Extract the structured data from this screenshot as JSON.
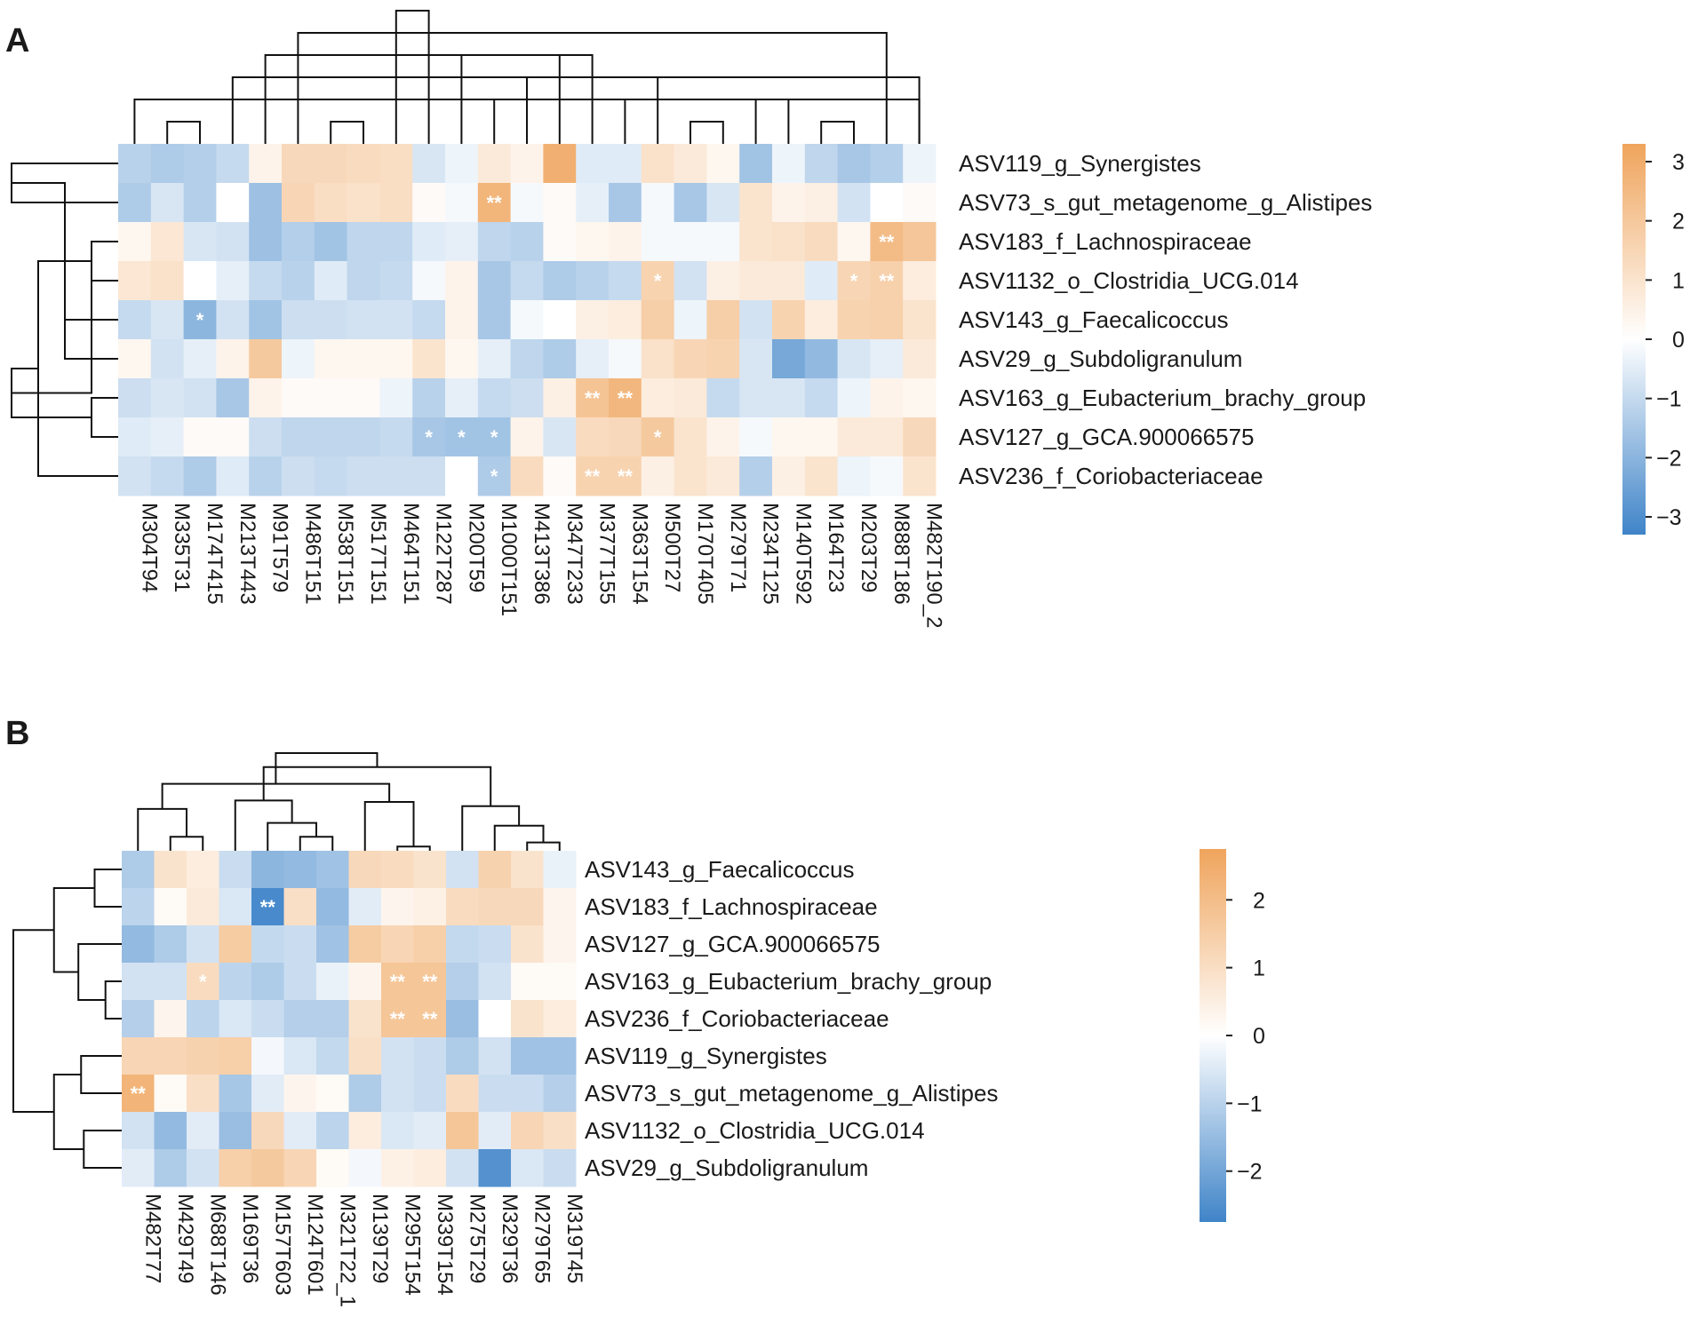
{
  "figure": {
    "colors": {
      "negative": "#3f84c8",
      "zero": "#ffffff",
      "positive": "#efa45c"
    }
  },
  "chart_data": [
    {
      "type": "heatmap",
      "panel": "A",
      "title": "",
      "xlabel": "",
      "ylabel": "",
      "color_range": [
        -3.3,
        3.3
      ],
      "colorbar_ticks": [
        "3",
        "2",
        "1",
        "0",
        "−1",
        "−2",
        "−3"
      ],
      "colorbar_tick_values": [
        3,
        2,
        1,
        0,
        -1,
        -2,
        -3
      ],
      "rows": [
        "ASV119_g_Synergistes",
        "ASV73_s_gut_metagenome_g_Alistipes",
        "ASV183_f_Lachnospiraceae",
        "ASV1132_o_Clostridia_UCG.014",
        "ASV143_g_Faecalicoccus",
        "ASV29_g_Subdoligranulum",
        "ASV163_g_Eubacterium_brachy_group",
        "ASV127_g_GCA.900066575",
        "ASV236_f_Coriobacteriaceae"
      ],
      "columns": [
        "M304T94",
        "M335T31",
        "M174T415",
        "M213T443",
        "M91T579",
        "M486T151",
        "M538T151",
        "M517T151",
        "M464T151",
        "M122T287",
        "M200T59",
        "M1000T151",
        "M413T386",
        "M347T233",
        "M377T155",
        "M363T154",
        "M500T27",
        "M170T405",
        "M279T71",
        "M234T125",
        "M140T592",
        "M164T23",
        "M203T29",
        "M888T186",
        "M482T190_2"
      ],
      "values": [
        [
          -1.0,
          -1.2,
          -1.1,
          -0.8,
          0.3,
          1.2,
          1.2,
          1.1,
          1.0,
          -0.5,
          -0.2,
          0.6,
          0.3,
          2.8,
          -0.4,
          -0.4,
          0.9,
          0.6,
          0.2,
          -1.4,
          -0.2,
          -0.9,
          -1.3,
          -1.1,
          -0.2
        ],
        [
          -1.2,
          -0.5,
          -1.1,
          0.0,
          -1.5,
          1.3,
          1.0,
          0.9,
          1.0,
          0.1,
          -0.1,
          2.6,
          -0.1,
          0.1,
          -0.3,
          -1.3,
          -0.1,
          -1.3,
          -0.5,
          0.8,
          0.3,
          0.4,
          -0.6,
          0.0,
          0.1
        ],
        [
          0.2,
          0.7,
          -0.5,
          -0.6,
          -1.5,
          -1.1,
          -1.4,
          -0.9,
          -0.9,
          -0.4,
          -0.3,
          -0.9,
          -1.0,
          0.1,
          0.2,
          0.3,
          -0.1,
          -0.1,
          -0.1,
          0.8,
          0.9,
          1.1,
          0.2,
          2.3,
          1.9
        ],
        [
          0.7,
          0.9,
          0.0,
          -0.3,
          -0.8,
          -1.0,
          -0.4,
          -0.9,
          -0.8,
          -0.1,
          0.3,
          -1.3,
          -0.8,
          -1.2,
          -1.0,
          -0.8,
          1.4,
          -0.6,
          0.4,
          0.6,
          0.6,
          -0.4,
          1.3,
          1.5,
          0.5
        ],
        [
          -0.8,
          -0.5,
          -1.8,
          -0.6,
          -1.4,
          -0.7,
          -0.7,
          -0.6,
          -0.6,
          -0.8,
          0.3,
          -1.3,
          -0.1,
          0.0,
          0.4,
          0.5,
          1.6,
          -0.2,
          1.6,
          -0.6,
          1.4,
          0.5,
          1.4,
          1.5,
          0.8
        ],
        [
          0.2,
          -0.6,
          -0.3,
          0.3,
          1.8,
          -0.2,
          0.2,
          0.2,
          0.2,
          0.8,
          0.2,
          -0.3,
          -0.9,
          -1.2,
          -0.3,
          -0.1,
          0.9,
          1.3,
          1.4,
          -0.5,
          -2.2,
          -1.7,
          -0.5,
          -0.3,
          0.6
        ],
        [
          -0.7,
          -0.5,
          -0.6,
          -1.3,
          0.3,
          0.1,
          0.1,
          0.1,
          -0.2,
          -1.0,
          -0.3,
          -0.8,
          -0.7,
          0.4,
          2.0,
          2.5,
          0.5,
          0.6,
          -0.8,
          -0.5,
          -0.5,
          -0.8,
          -0.2,
          0.3,
          0.2
        ],
        [
          -0.4,
          -0.3,
          0.1,
          0.1,
          -0.7,
          -0.9,
          -0.9,
          -0.9,
          -0.8,
          -1.3,
          -1.4,
          -1.4,
          0.3,
          -0.5,
          1.1,
          1.2,
          1.8,
          0.8,
          0.3,
          -0.1,
          0.2,
          0.2,
          0.6,
          0.6,
          1.2
        ],
        [
          -0.6,
          -0.8,
          -1.2,
          -0.4,
          -1.0,
          -0.7,
          -0.8,
          -0.7,
          -0.7,
          -0.7,
          0.0,
          -1.2,
          1.1,
          0.1,
          1.4,
          1.4,
          0.4,
          0.8,
          0.6,
          -1.1,
          0.4,
          0.8,
          -0.2,
          -0.1,
          0.8
        ]
      ],
      "stars": [
        {
          "row": 1,
          "col": 11,
          "label": "**"
        },
        {
          "row": 2,
          "col": 23,
          "label": "**"
        },
        {
          "row": 3,
          "col": 16,
          "label": "*"
        },
        {
          "row": 3,
          "col": 22,
          "label": "*"
        },
        {
          "row": 3,
          "col": 23,
          "label": "**"
        },
        {
          "row": 4,
          "col": 2,
          "label": "*"
        },
        {
          "row": 6,
          "col": 14,
          "label": "**"
        },
        {
          "row": 6,
          "col": 15,
          "label": "**"
        },
        {
          "row": 7,
          "col": 9,
          "label": "*"
        },
        {
          "row": 7,
          "col": 10,
          "label": "*"
        },
        {
          "row": 7,
          "col": 11,
          "label": "*"
        },
        {
          "row": 7,
          "col": 16,
          "label": "*"
        },
        {
          "row": 8,
          "col": 11,
          "label": "*"
        },
        {
          "row": 8,
          "col": 14,
          "label": "**"
        },
        {
          "row": 8,
          "col": 15,
          "label": "**"
        }
      ],
      "col_dendrogram": [
        [
          1,
          2,
          1
        ],
        [
          0,
          24,
          2
        ],
        [
          3,
          24,
          3
        ],
        [
          4,
          13,
          4
        ],
        [
          5,
          23,
          5
        ],
        [
          6,
          7,
          1
        ],
        [
          8,
          9,
          6
        ],
        [
          10,
          14,
          4
        ],
        [
          11,
          15,
          2
        ],
        [
          12,
          16,
          3
        ],
        [
          17,
          18,
          1
        ],
        [
          19,
          20,
          2
        ],
        [
          21,
          22,
          1
        ]
      ],
      "row_dendrogram": [
        [
          2,
          3,
          1
        ],
        [
          0,
          1,
          4
        ],
        [
          4,
          5,
          2
        ],
        [
          6,
          7,
          1
        ],
        [
          8,
          9,
          3
        ],
        [
          10,
          11,
          2
        ],
        [
          12,
          13,
          4
        ],
        [
          14,
          15,
          1
        ]
      ]
    },
    {
      "type": "heatmap",
      "panel": "B",
      "title": "",
      "xlabel": "",
      "ylabel": "",
      "color_range": [
        -2.75,
        2.75
      ],
      "colorbar_ticks": [
        "2",
        "1",
        "0",
        "−1",
        "−2"
      ],
      "colorbar_tick_values": [
        2,
        1,
        0,
        -1,
        -2
      ],
      "rows": [
        "ASV143_g_Faecalicoccus",
        "ASV183_f_Lachnospiraceae",
        "ASV127_g_GCA.900066575",
        "ASV163_g_Eubacterium_brachy_group",
        "ASV236_f_Coriobacteriaceae",
        "ASV119_g_Synergistes",
        "ASV73_s_gut_metagenome_g_Alistipes",
        "ASV1132_o_Clostridia_UCG.014",
        "ASV29_g_Subdoligranulum"
      ],
      "columns": [
        "M482T77",
        "M429T49",
        "M688T146",
        "M169T36",
        "M157T603",
        "M124T601",
        "M321T22_1",
        "M139T29",
        "M295T154",
        "M339T154",
        "M275T29",
        "M329T36",
        "M279T65",
        "M319T45"
      ],
      "values": [
        [
          -1.0,
          0.7,
          0.4,
          -0.6,
          -1.5,
          -1.4,
          -1.2,
          1.0,
          0.9,
          0.7,
          -0.5,
          1.2,
          0.7,
          -0.2
        ],
        [
          -0.8,
          0.1,
          0.5,
          -0.4,
          -2.6,
          0.8,
          -1.4,
          -0.3,
          0.2,
          0.3,
          0.9,
          1.0,
          1.0,
          0.2
        ],
        [
          -1.4,
          -1.0,
          -0.5,
          1.4,
          -0.7,
          -0.6,
          -1.2,
          1.4,
          1.1,
          1.3,
          -0.7,
          -0.6,
          0.7,
          0.2
        ],
        [
          -0.5,
          -0.5,
          0.9,
          -0.8,
          -1.0,
          -0.6,
          -0.2,
          0.2,
          1.6,
          1.6,
          -0.9,
          -0.5,
          0.1,
          0.1
        ],
        [
          -0.9,
          0.2,
          -0.8,
          -0.4,
          -0.6,
          -0.9,
          -0.9,
          0.7,
          1.6,
          1.6,
          -1.3,
          0.0,
          0.7,
          0.4
        ],
        [
          1.1,
          1.1,
          1.2,
          1.3,
          -0.1,
          -0.4,
          -0.7,
          0.8,
          -0.5,
          -0.6,
          -1.0,
          -0.5,
          -1.2,
          -1.2
        ],
        [
          2.2,
          0.1,
          0.8,
          -1.1,
          -0.3,
          0.2,
          0.1,
          -1.0,
          -0.5,
          -0.6,
          0.9,
          -0.6,
          -0.6,
          -0.9
        ],
        [
          -0.5,
          -1.4,
          -0.3,
          -1.3,
          1.0,
          -0.3,
          -0.8,
          0.4,
          -0.4,
          -0.3,
          1.6,
          -0.3,
          1.1,
          0.8
        ],
        [
          -0.3,
          -1.0,
          -0.5,
          1.3,
          1.5,
          1.1,
          0.1,
          -0.1,
          0.3,
          0.4,
          -0.5,
          -2.4,
          -0.4,
          -0.6
        ]
      ],
      "stars": [
        {
          "row": 1,
          "col": 4,
          "label": "**"
        },
        {
          "row": 3,
          "col": 2,
          "label": "*"
        },
        {
          "row": 3,
          "col": 8,
          "label": "**"
        },
        {
          "row": 3,
          "col": 9,
          "label": "**"
        },
        {
          "row": 4,
          "col": 8,
          "label": "**"
        },
        {
          "row": 4,
          "col": 9,
          "label": "**"
        },
        {
          "row": 6,
          "col": 0,
          "label": "**"
        }
      ],
      "col_dendrogram": [
        [
          1,
          2,
          1
        ],
        [
          5,
          6,
          1
        ],
        [
          8,
          9,
          0.3
        ],
        [
          12,
          13,
          0.6
        ],
        [
          0,
          14,
          3
        ],
        [
          4,
          15,
          2
        ],
        [
          11,
          17,
          1.8
        ],
        [
          7,
          16,
          3.5
        ],
        [
          3,
          19,
          3.6
        ],
        [
          10,
          20,
          3.2
        ],
        [
          18,
          21,
          4.8
        ],
        [
          22,
          23,
          6
        ],
        [
          24,
          25,
          7
        ]
      ],
      "row_dendrogram": [
        [
          0,
          1,
          1
        ],
        [
          3,
          4,
          0.6
        ],
        [
          2,
          10,
          1.6
        ],
        [
          9,
          11,
          2.5
        ],
        [
          5,
          6,
          1.5
        ],
        [
          7,
          8,
          1.4
        ],
        [
          13,
          14,
          2.5
        ],
        [
          12,
          15,
          4
        ]
      ]
    }
  ]
}
